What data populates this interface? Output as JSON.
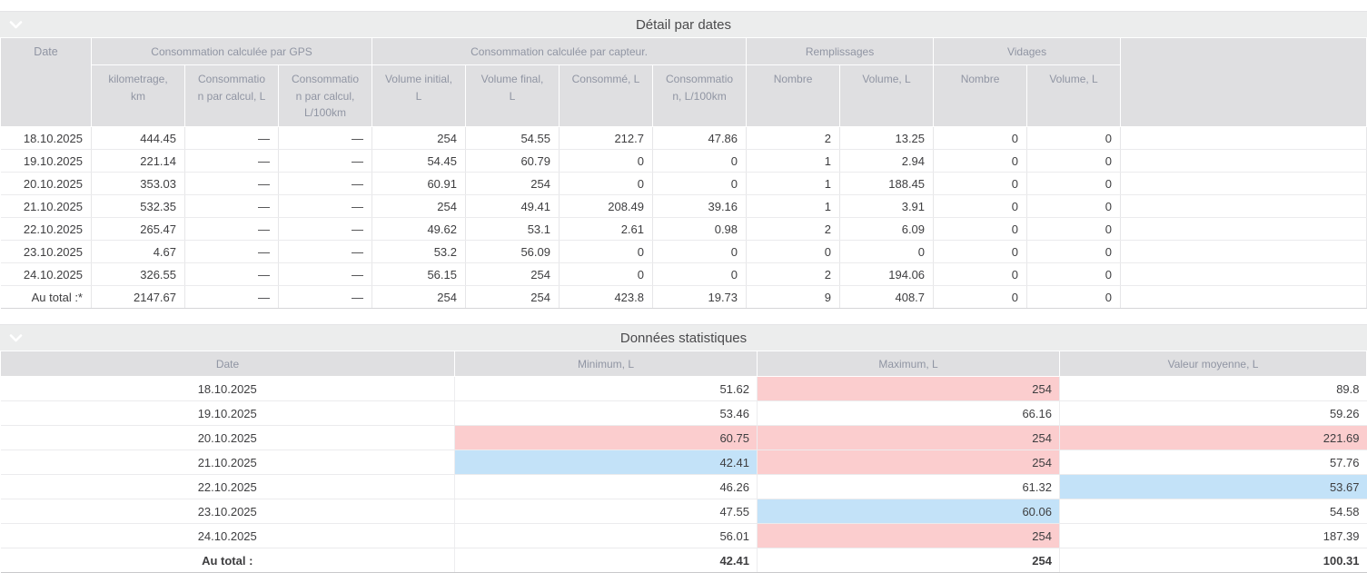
{
  "colors": {
    "highlight_red": "#fbcdce",
    "highlight_blue": "#c3e2f8",
    "header_bg": "#dfdfe1",
    "section_bar_bg": "#eceded"
  },
  "detail_section": {
    "title": "Détail par dates",
    "collapse_icon": "chevron-down-icon",
    "header": {
      "date": "Date",
      "groups": [
        {
          "label": "Consommation calculée par GPS",
          "cols": [
            "kilometrage, km",
            "Consommation par calcul, L",
            "Consommation par calcul, L/100km"
          ]
        },
        {
          "label": "Consommation calculée par capteur.",
          "cols": [
            "Volume initial, L",
            "Volume final, L",
            "Consommé, L",
            "Consommation, L/100km"
          ]
        },
        {
          "label": "Remplissages",
          "cols": [
            "Nombre",
            "Volume, L"
          ]
        },
        {
          "label": "Vidages",
          "cols": [
            "Nombre",
            "Volume, L"
          ]
        }
      ]
    },
    "rows": [
      [
        "18.10.2025",
        "444.45",
        "—",
        "—",
        "254",
        "54.55",
        "212.7",
        "47.86",
        "2",
        "13.25",
        "0",
        "0"
      ],
      [
        "19.10.2025",
        "221.14",
        "—",
        "—",
        "54.45",
        "60.79",
        "0",
        "0",
        "1",
        "2.94",
        "0",
        "0"
      ],
      [
        "20.10.2025",
        "353.03",
        "—",
        "—",
        "60.91",
        "254",
        "0",
        "0",
        "1",
        "188.45",
        "0",
        "0"
      ],
      [
        "21.10.2025",
        "532.35",
        "—",
        "—",
        "254",
        "49.41",
        "208.49",
        "39.16",
        "1",
        "3.91",
        "0",
        "0"
      ],
      [
        "22.10.2025",
        "265.47",
        "—",
        "—",
        "49.62",
        "53.1",
        "2.61",
        "0.98",
        "2",
        "6.09",
        "0",
        "0"
      ],
      [
        "23.10.2025",
        "4.67",
        "—",
        "—",
        "53.2",
        "56.09",
        "0",
        "0",
        "0",
        "0",
        "0",
        "0"
      ],
      [
        "24.10.2025",
        "326.55",
        "—",
        "—",
        "56.15",
        "254",
        "0",
        "0",
        "2",
        "194.06",
        "0",
        "0"
      ],
      [
        "Au total :*",
        "2147.67",
        "—",
        "—",
        "254",
        "254",
        "423.8",
        "19.73",
        "9",
        "408.7",
        "0",
        "0"
      ]
    ]
  },
  "stats_section": {
    "title": "Données statistiques",
    "collapse_icon": "chevron-down-icon",
    "columns": [
      "Date",
      "Minimum, L",
      "Maximum, L",
      "Valeur moyenne, L"
    ],
    "rows": [
      {
        "cells": [
          "18.10.2025",
          "51.62",
          "254",
          "89.8"
        ],
        "highlights": [
          "",
          "",
          "red",
          ""
        ],
        "is_total": false
      },
      {
        "cells": [
          "19.10.2025",
          "53.46",
          "66.16",
          "59.26"
        ],
        "highlights": [
          "",
          "",
          "",
          ""
        ],
        "is_total": false
      },
      {
        "cells": [
          "20.10.2025",
          "60.75",
          "254",
          "221.69"
        ],
        "highlights": [
          "",
          "red",
          "red",
          "red"
        ],
        "is_total": false
      },
      {
        "cells": [
          "21.10.2025",
          "42.41",
          "254",
          "57.76"
        ],
        "highlights": [
          "",
          "blue",
          "red",
          ""
        ],
        "is_total": false
      },
      {
        "cells": [
          "22.10.2025",
          "46.26",
          "61.32",
          "53.67"
        ],
        "highlights": [
          "",
          "",
          "",
          "blue"
        ],
        "is_total": false
      },
      {
        "cells": [
          "23.10.2025",
          "47.55",
          "60.06",
          "54.58"
        ],
        "highlights": [
          "",
          "",
          "blue",
          ""
        ],
        "is_total": false
      },
      {
        "cells": [
          "24.10.2025",
          "56.01",
          "254",
          "187.39"
        ],
        "highlights": [
          "",
          "",
          "red",
          ""
        ],
        "is_total": false
      },
      {
        "cells": [
          "Au total :",
          "42.41",
          "254",
          "100.31"
        ],
        "highlights": [
          "",
          "",
          "",
          ""
        ],
        "is_total": true
      }
    ]
  }
}
